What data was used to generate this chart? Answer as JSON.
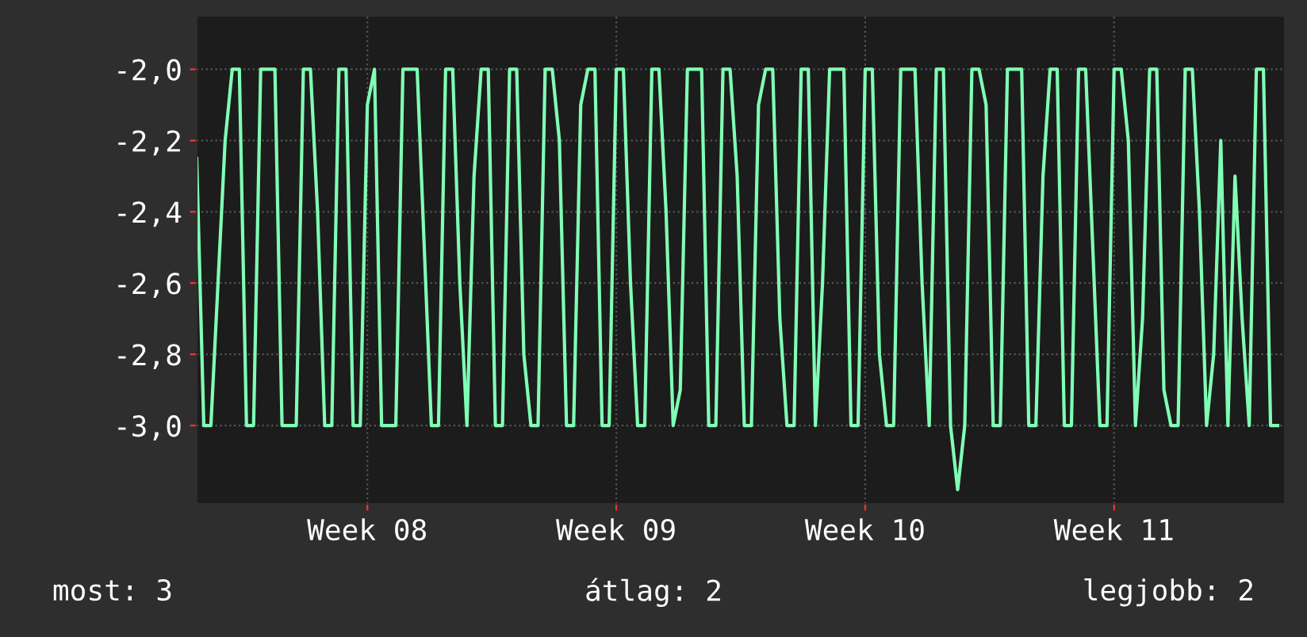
{
  "chart_data": {
    "type": "line",
    "categories": [
      null,
      null,
      null,
      null,
      null,
      null,
      null,
      null,
      null,
      null,
      null,
      null,
      null,
      null,
      null,
      null,
      null,
      null,
      null,
      null,
      null,
      null,
      null,
      null,
      "Week 08",
      null,
      null,
      null,
      null,
      null,
      null,
      null,
      null,
      null,
      null,
      null,
      null,
      null,
      null,
      null,
      null,
      null,
      null,
      null,
      null,
      null,
      null,
      null,
      null,
      null,
      null,
      null,
      null,
      null,
      null,
      null,
      null,
      null,
      null,
      "Week 09",
      null,
      null,
      null,
      null,
      null,
      null,
      null,
      null,
      null,
      null,
      null,
      null,
      null,
      null,
      null,
      null,
      null,
      null,
      null,
      null,
      null,
      null,
      null,
      null,
      null,
      null,
      null,
      null,
      null,
      null,
      null,
      null,
      null,
      null,
      "Week 10",
      null,
      null,
      null,
      null,
      null,
      null,
      null,
      null,
      null,
      null,
      null,
      null,
      null,
      null,
      null,
      null,
      null,
      null,
      null,
      null,
      null,
      null,
      null,
      null,
      null,
      null,
      null,
      null,
      null,
      null,
      null,
      null,
      null,
      null,
      "Week 11",
      null,
      null,
      null,
      null,
      null,
      null,
      null,
      null,
      null,
      null,
      null,
      null,
      null,
      null,
      null,
      null,
      null,
      null,
      null,
      null,
      null,
      null,
      null
    ],
    "series": [
      {
        "color": "#80ffb4",
        "values": [
          -2.25,
          -3.0,
          -3.0,
          -2.6,
          -2.2,
          -2.0,
          -2.0,
          -3.0,
          -3.0,
          -2.0,
          -2.0,
          -2.0,
          -3.0,
          -3.0,
          -3.0,
          -2.0,
          -2.0,
          -2.4,
          -3.0,
          -3.0,
          -2.0,
          -2.0,
          -3.0,
          -3.0,
          -2.1,
          -2.0,
          -3.0,
          -3.0,
          -3.0,
          -2.0,
          -2.0,
          -2.0,
          -2.5,
          -3.0,
          -3.0,
          -2.0,
          -2.0,
          -2.6,
          -3.0,
          -2.3,
          -2.0,
          -2.0,
          -3.0,
          -3.0,
          -2.0,
          -2.0,
          -2.8,
          -3.0,
          -3.0,
          -2.0,
          -2.0,
          -2.2,
          -3.0,
          -3.0,
          -2.1,
          -2.0,
          -2.0,
          -3.0,
          -3.0,
          -2.0,
          -2.0,
          -2.6,
          -3.0,
          -3.0,
          -2.0,
          -2.0,
          -2.4,
          -3.0,
          -2.9,
          -2.0,
          -2.0,
          -2.0,
          -3.0,
          -3.0,
          -2.0,
          -2.0,
          -2.3,
          -3.0,
          -3.0,
          -2.1,
          -2.0,
          -2.0,
          -2.7,
          -3.0,
          -3.0,
          -2.0,
          -2.0,
          -3.0,
          -2.6,
          -2.0,
          -2.0,
          -2.0,
          -3.0,
          -3.0,
          -2.0,
          -2.0,
          -2.8,
          -3.0,
          -3.0,
          -2.0,
          -2.0,
          -2.0,
          -2.6,
          -3.0,
          -2.0,
          -2.0,
          -3.0,
          -3.18,
          -3.0,
          -2.0,
          -2.0,
          -2.1,
          -3.0,
          -3.0,
          -2.0,
          -2.0,
          -2.0,
          -3.0,
          -3.0,
          -2.3,
          -2.0,
          -2.0,
          -3.0,
          -3.0,
          -2.0,
          -2.0,
          -2.5,
          -3.0,
          -3.0,
          -2.0,
          -2.0,
          -2.2,
          -3.0,
          -2.7,
          -2.0,
          -2.0,
          -2.9,
          -3.0,
          -3.0,
          -2.0,
          -2.0,
          -2.4,
          -3.0,
          -2.8,
          -2.2,
          -3.0,
          -2.3,
          -2.7,
          -3.0,
          -2.0,
          -2.0,
          -3.0,
          -3.0
        ]
      }
    ],
    "ylim": [
      -3.22,
      -1.85
    ],
    "yticks": [
      {
        "value": -3.0,
        "label": "-3,0"
      },
      {
        "value": -2.8,
        "label": "-2,8"
      },
      {
        "value": -2.6,
        "label": "-2,6"
      },
      {
        "value": -2.4,
        "label": "-2,4"
      },
      {
        "value": -2.2,
        "label": "-2,2"
      },
      {
        "value": -2.0,
        "label": "-2,0"
      }
    ],
    "grid": true,
    "line_style": "solid",
    "annotations": [
      "most: 3",
      "átlag: 2",
      "legjobb: 2"
    ]
  }
}
